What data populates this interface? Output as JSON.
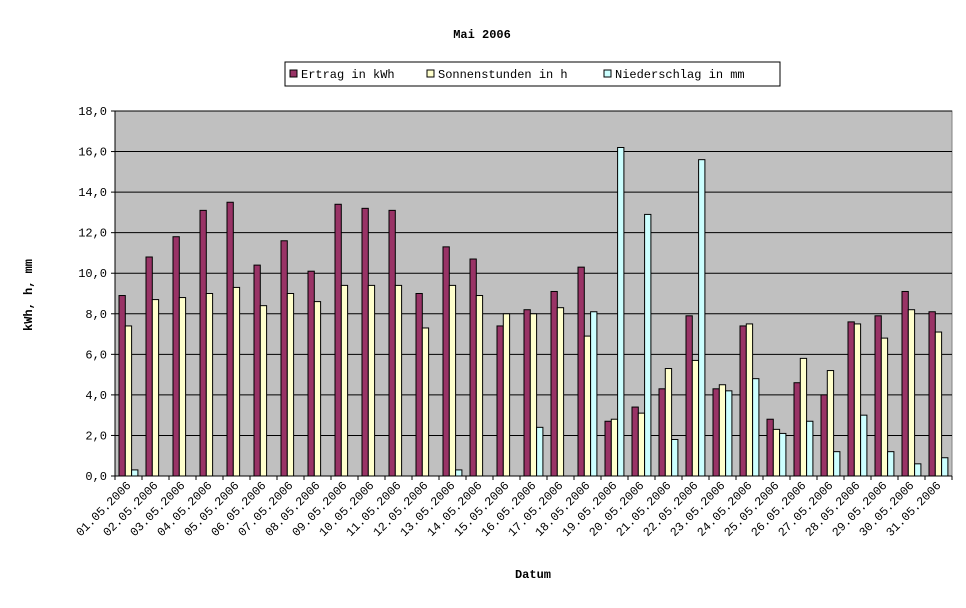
{
  "chart_data": {
    "type": "bar",
    "title": "Mai 2006",
    "xlabel": "Datum",
    "ylabel": "kWh, h, mm",
    "ylim": [
      0,
      18
    ],
    "ytick_step": 2,
    "ytick_labels": [
      "0,0",
      "2,0",
      "4,0",
      "6,0",
      "8,0",
      "10,0",
      "12,0",
      "14,0",
      "16,0",
      "18,0"
    ],
    "grid": true,
    "legend_position": "top",
    "plot_background": "#C0C0C0",
    "categories": [
      "01.05.2006",
      "02.05.2006",
      "03.05.2006",
      "04.05.2006",
      "05.05.2006",
      "06.05.2006",
      "07.05.2006",
      "08.05.2006",
      "09.05.2006",
      "10.05.2006",
      "11.05.2006",
      "12.05.2006",
      "13.05.2006",
      "14.05.2006",
      "15.05.2006",
      "16.05.2006",
      "17.05.2006",
      "18.05.2006",
      "19.05.2006",
      "20.05.2006",
      "21.05.2006",
      "22.05.2006",
      "23.05.2006",
      "24.05.2006",
      "25.05.2006",
      "26.05.2006",
      "27.05.2006",
      "28.05.2006",
      "29.05.2006",
      "30.05.2006",
      "31.05.2006"
    ],
    "series": [
      {
        "name": "Ertrag in kWh",
        "color": "#993366",
        "values": [
          8.9,
          10.8,
          11.8,
          13.1,
          13.5,
          10.4,
          11.6,
          10.1,
          13.4,
          13.2,
          13.1,
          9.0,
          11.3,
          10.7,
          7.4,
          8.2,
          9.1,
          10.3,
          2.7,
          3.4,
          4.3,
          7.9,
          4.3,
          7.4,
          2.8,
          4.6,
          4.0,
          7.6,
          7.9,
          9.1,
          8.1
        ]
      },
      {
        "name": "Sonnenstunden in h",
        "color": "#FFFFCC",
        "values": [
          7.4,
          8.7,
          8.8,
          9.0,
          9.3,
          8.4,
          9.0,
          8.6,
          9.4,
          9.4,
          9.4,
          7.3,
          9.4,
          8.9,
          8.0,
          8.0,
          8.3,
          6.9,
          2.8,
          3.1,
          5.3,
          5.7,
          4.5,
          7.5,
          2.3,
          5.8,
          5.2,
          7.5,
          6.8,
          8.2,
          7.1
        ]
      },
      {
        "name": "Niederschlag in mm",
        "color": "#CCFFFF",
        "values": [
          0.3,
          0,
          0,
          0,
          0,
          0,
          0,
          0,
          0,
          0,
          0,
          0,
          0.3,
          0,
          0,
          2.4,
          0,
          8.1,
          16.2,
          12.9,
          1.8,
          15.6,
          4.2,
          4.8,
          2.1,
          2.7,
          1.2,
          3.0,
          1.2,
          0.6,
          0.9
        ]
      }
    ]
  }
}
